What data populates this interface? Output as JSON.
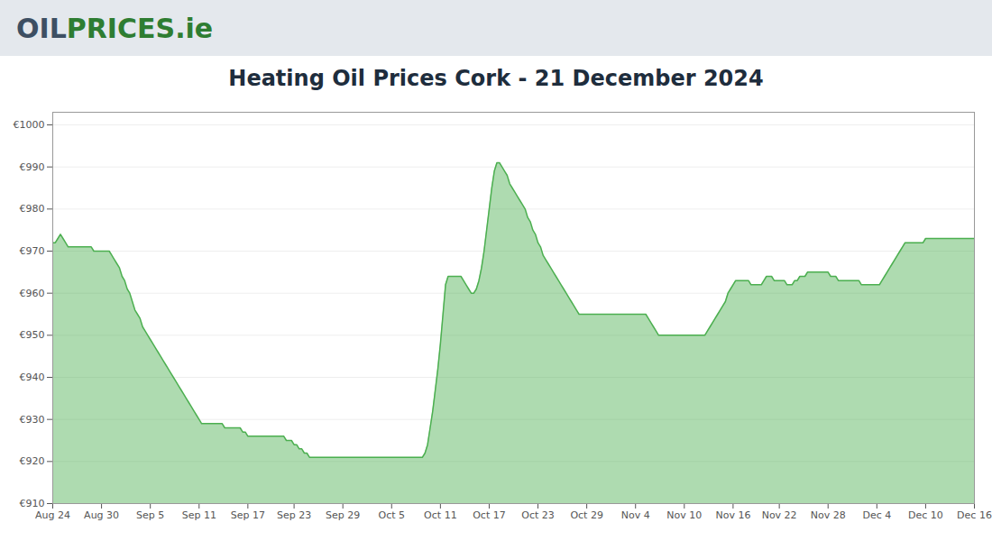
{
  "chart_data": {
    "type": "area",
    "title": "Heating Oil Prices Cork - 21 December 2024",
    "annotations": [
      {
        "text": "OIL",
        "color": "#3d4f63"
      },
      {
        "text": "PRICES",
        "color": "#2e7d32"
      },
      {
        "text": ".ie",
        "color": "#2e7d32"
      }
    ],
    "color": "#4caf50",
    "grid": true,
    "ylim": [
      910,
      1003
    ],
    "yticks": [
      {
        "value": 910,
        "label": "€910"
      },
      {
        "value": 920,
        "label": "€920"
      },
      {
        "value": 930,
        "label": "€930"
      },
      {
        "value": 940,
        "label": "€940"
      },
      {
        "value": 950,
        "label": "€950"
      },
      {
        "value": 960,
        "label": "€960"
      },
      {
        "value": 970,
        "label": "€970"
      },
      {
        "value": 980,
        "label": "€980"
      },
      {
        "value": 990,
        "label": "€990"
      },
      {
        "value": 1000,
        "label": "€1000"
      }
    ],
    "categories": [
      "Aug 24",
      null,
      null,
      null,
      null,
      null,
      null,
      null,
      null,
      null,
      null,
      null,
      null,
      null,
      null,
      null,
      null,
      null,
      null,
      "Aug 30",
      null,
      null,
      null,
      null,
      null,
      null,
      null,
      null,
      null,
      null,
      null,
      null,
      null,
      null,
      null,
      null,
      null,
      null,
      "Sep 5",
      null,
      null,
      null,
      null,
      null,
      null,
      null,
      null,
      null,
      null,
      null,
      null,
      null,
      null,
      null,
      null,
      null,
      null,
      "Sep 11",
      null,
      null,
      null,
      null,
      null,
      null,
      null,
      null,
      null,
      null,
      null,
      null,
      null,
      null,
      null,
      null,
      null,
      null,
      "Sep 17",
      null,
      null,
      null,
      null,
      null,
      null,
      null,
      null,
      null,
      null,
      null,
      null,
      null,
      null,
      null,
      null,
      null,
      "Sep 23",
      null,
      null,
      null,
      null,
      null,
      null,
      null,
      null,
      null,
      null,
      null,
      null,
      null,
      null,
      null,
      null,
      null,
      null,
      "Sep 29",
      null,
      null,
      null,
      null,
      null,
      null,
      null,
      null,
      null,
      null,
      null,
      null,
      null,
      null,
      null,
      null,
      null,
      null,
      "Oct 5",
      null,
      null,
      null,
      null,
      null,
      null,
      null,
      null,
      null,
      null,
      null,
      null,
      null,
      null,
      null,
      null,
      null,
      null,
      "Oct 11",
      null,
      null,
      null,
      null,
      null,
      null,
      null,
      null,
      null,
      null,
      null,
      null,
      null,
      null,
      null,
      null,
      null,
      null,
      "Oct 17",
      null,
      null,
      null,
      null,
      null,
      null,
      null,
      null,
      null,
      null,
      null,
      null,
      null,
      null,
      null,
      null,
      null,
      null,
      "Oct 23",
      null,
      null,
      null,
      null,
      null,
      null,
      null,
      null,
      null,
      null,
      null,
      null,
      null,
      null,
      null,
      null,
      null,
      null,
      "Oct 29",
      null,
      null,
      null,
      null,
      null,
      null,
      null,
      null,
      null,
      null,
      null,
      null,
      null,
      null,
      null,
      null,
      null,
      null,
      "Nov 4",
      null,
      null,
      null,
      null,
      null,
      null,
      null,
      null,
      null,
      null,
      null,
      null,
      null,
      null,
      null,
      null,
      null,
      null,
      "Nov 10",
      null,
      null,
      null,
      null,
      null,
      null,
      null,
      null,
      null,
      null,
      null,
      null,
      null,
      null,
      null,
      null,
      null,
      null,
      "Nov 16",
      null,
      null,
      null,
      null,
      null,
      null,
      null,
      null,
      null,
      null,
      null,
      null,
      null,
      null,
      null,
      null,
      null,
      "Nov 22",
      null,
      null,
      null,
      null,
      null,
      null,
      null,
      null,
      null,
      null,
      null,
      null,
      null,
      null,
      null,
      null,
      null,
      null,
      "Nov 28",
      null,
      null,
      null,
      null,
      null,
      null,
      null,
      null,
      null,
      null,
      null,
      null,
      null,
      null,
      null,
      null,
      null,
      null,
      "Dec 4",
      null,
      null,
      null,
      null,
      null,
      null,
      null,
      null,
      null,
      null,
      null,
      null,
      null,
      null,
      null,
      null,
      null,
      null,
      "Dec 10",
      null,
      null,
      null,
      null,
      null,
      null,
      null,
      null,
      null,
      null,
      null,
      null,
      null,
      null,
      null,
      null,
      null,
      null,
      "Dec 16"
    ],
    "values": [
      972,
      972,
      973,
      974,
      973,
      972,
      971,
      971,
      971,
      971,
      971,
      971,
      971,
      971,
      971,
      971,
      970,
      970,
      970,
      970,
      970,
      970,
      970,
      969,
      968,
      967,
      966,
      964,
      963,
      961,
      960,
      958,
      956,
      955,
      954,
      952,
      951,
      950,
      949,
      948,
      947,
      946,
      945,
      944,
      943,
      942,
      941,
      940,
      939,
      938,
      937,
      936,
      935,
      934,
      933,
      932,
      931,
      930,
      929,
      929,
      929,
      929,
      929,
      929,
      929,
      929,
      929,
      928,
      928,
      928,
      928,
      928,
      928,
      928,
      927,
      927,
      926,
      926,
      926,
      926,
      926,
      926,
      926,
      926,
      926,
      926,
      926,
      926,
      926,
      926,
      926,
      925,
      925,
      925,
      924,
      924,
      923,
      923,
      922,
      922,
      921,
      921,
      921,
      921,
      921,
      921,
      921,
      921,
      921,
      921,
      921,
      921,
      921,
      921,
      921,
      921,
      921,
      921,
      921,
      921,
      921,
      921,
      921,
      921,
      921,
      921,
      921,
      921,
      921,
      921,
      921,
      921,
      921,
      921,
      921,
      921,
      921,
      921,
      921,
      921,
      921,
      921,
      921,
      921,
      921,
      922,
      924,
      928,
      932,
      937,
      942,
      948,
      955,
      962,
      964,
      964,
      964,
      964,
      964,
      964,
      963,
      962,
      961,
      960,
      960,
      961,
      963,
      966,
      970,
      975,
      980,
      985,
      989,
      991,
      991,
      990,
      989,
      988,
      986,
      985,
      984,
      983,
      982,
      981,
      980,
      978,
      977,
      975,
      974,
      972,
      971,
      969,
      968,
      967,
      966,
      965,
      964,
      963,
      962,
      961,
      960,
      959,
      958,
      957,
      956,
      955,
      955,
      955,
      955,
      955,
      955,
      955,
      955,
      955,
      955,
      955,
      955,
      955,
      955,
      955,
      955,
      955,
      955,
      955,
      955,
      955,
      955,
      955,
      955,
      955,
      955,
      955,
      954,
      953,
      952,
      951,
      950,
      950,
      950,
      950,
      950,
      950,
      950,
      950,
      950,
      950,
      950,
      950,
      950,
      950,
      950,
      950,
      950,
      950,
      950,
      951,
      952,
      953,
      954,
      955,
      956,
      957,
      958,
      960,
      961,
      962,
      963,
      963,
      963,
      963,
      963,
      963,
      962,
      962,
      962,
      962,
      962,
      963,
      964,
      964,
      964,
      963,
      963,
      963,
      963,
      963,
      962,
      962,
      962,
      963,
      963,
      964,
      964,
      964,
      965,
      965,
      965,
      965,
      965,
      965,
      965,
      965,
      965,
      964,
      964,
      964,
      963,
      963,
      963,
      963,
      963,
      963,
      963,
      963,
      963,
      962,
      962,
      962,
      962,
      962,
      962,
      962,
      962,
      963,
      964,
      965,
      966,
      967,
      968,
      969,
      970,
      971,
      972,
      972,
      972,
      972,
      972,
      972,
      972,
      972,
      973,
      973,
      973,
      973,
      973,
      973,
      973,
      973,
      973,
      973,
      973,
      973,
      973,
      973,
      973,
      973,
      973,
      973,
      973,
      973
    ]
  }
}
